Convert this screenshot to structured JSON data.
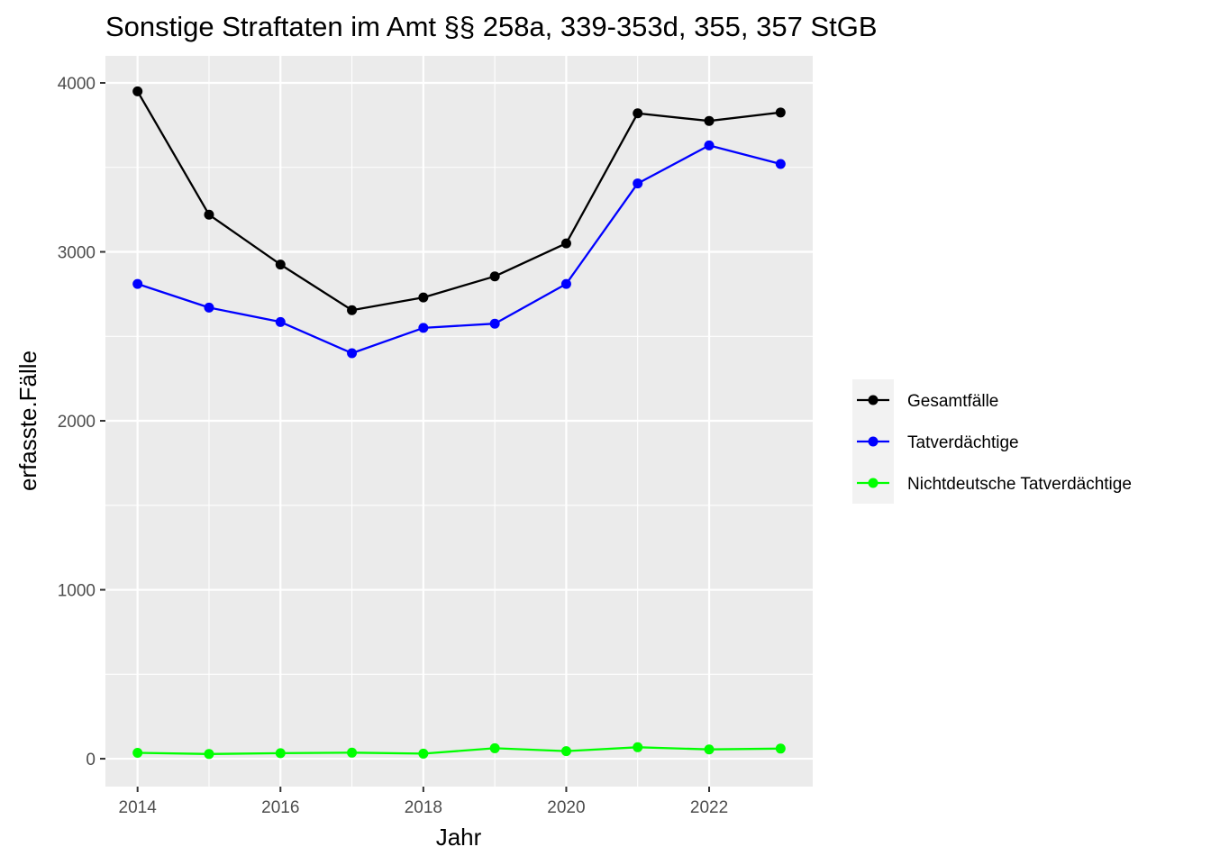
{
  "chart_data": {
    "type": "line",
    "title": "Sonstige Straftaten im Amt §§ 258a, 339-353d, 355, 357 StGB",
    "xlabel": "Jahr",
    "ylabel": "erfasste.Fälle",
    "x": [
      2014,
      2015,
      2016,
      2017,
      2018,
      2019,
      2020,
      2021,
      2022,
      2023
    ],
    "xlim": [
      2013.55,
      2023.45
    ],
    "ylim": [
      -165,
      4160
    ],
    "x_ticks": [
      2014,
      2016,
      2018,
      2020,
      2022
    ],
    "x_tick_labels": [
      "2014",
      "2016",
      "2018",
      "2020",
      "2022"
    ],
    "y_ticks": [
      0,
      1000,
      2000,
      3000,
      4000
    ],
    "y_tick_labels": [
      "0",
      "1000",
      "2000",
      "3000",
      "4000"
    ],
    "grid": true,
    "legend_position": "right",
    "panel_background": "#ebebeb",
    "series": [
      {
        "name": "Gesamtfälle",
        "color": "#000000",
        "values": [
          3950,
          3220,
          2925,
          2655,
          2730,
          2855,
          3050,
          3820,
          3775,
          3825
        ]
      },
      {
        "name": "Tatverdächtige",
        "color": "#0000ff",
        "values": [
          2810,
          2670,
          2585,
          2400,
          2550,
          2575,
          2810,
          3405,
          3630,
          3520
        ]
      },
      {
        "name": "Nichtdeutsche Tatverdächtige",
        "color": "#00ff00",
        "values": [
          35,
          28,
          33,
          36,
          30,
          62,
          45,
          68,
          55,
          60
        ]
      }
    ]
  }
}
